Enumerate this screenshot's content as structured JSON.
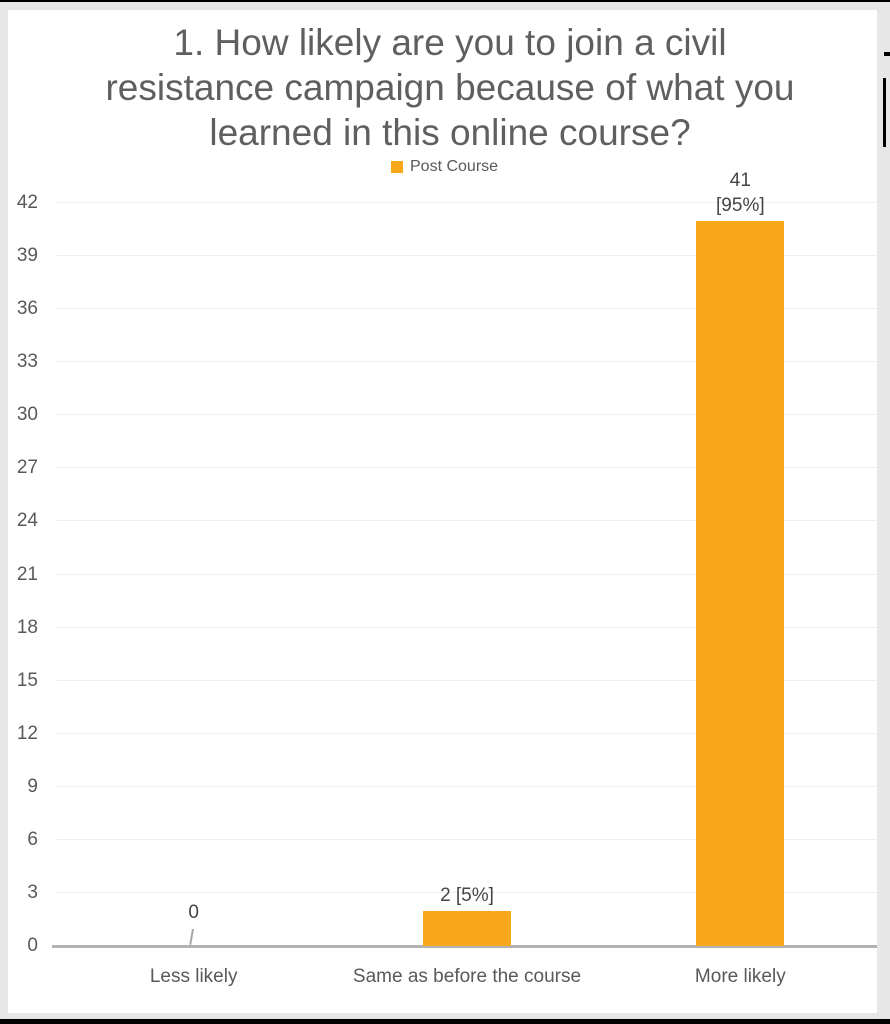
{
  "chart_data": {
    "type": "bar",
    "title": "1. How likely are you to join a civil resistance campaign because of what you learned in this online course?",
    "title_lines": [
      "1. How likely are you to join a civil",
      "resistance campaign because of what you",
      "learned in this online course?"
    ],
    "legend_position": "top",
    "categories": [
      "Less likely",
      "Same as before the course",
      "More likely"
    ],
    "series": [
      {
        "name": "Post Course",
        "color": "#F9A81C",
        "values": [
          0,
          2,
          41
        ]
      }
    ],
    "data_labels": [
      [
        "0"
      ],
      [
        "2 [5%]"
      ],
      [
        "41",
        "[95%]"
      ]
    ],
    "xlabel": "",
    "ylabel": "",
    "ylim": [
      0,
      42
    ],
    "yticks": [
      0,
      3,
      6,
      9,
      12,
      15,
      18,
      21,
      24,
      27,
      30,
      33,
      36,
      39,
      42
    ],
    "grid": true,
    "colors": {
      "bar": "#F9A81C",
      "title_text": "#5F5F5F",
      "axis_text": "#595959",
      "data_label_text": "#454545",
      "gridline": "#EFEFEF",
      "axis_line": "#B3B3B3",
      "card_background": "#FFFFFF",
      "frame_background": "#E7E7E7"
    }
  }
}
